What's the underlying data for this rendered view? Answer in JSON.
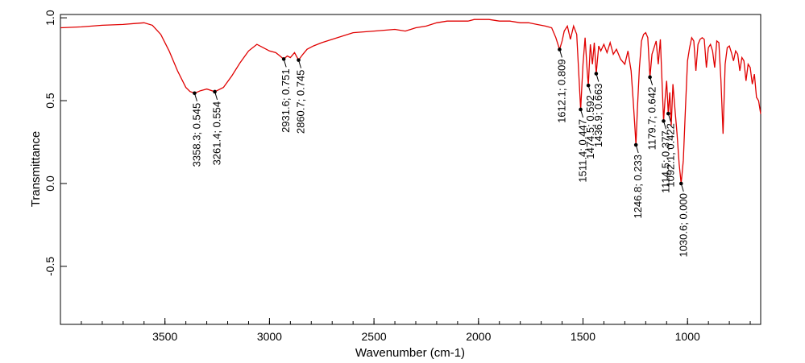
{
  "chart_data": {
    "type": "line",
    "xlabel": "Wavenumber (cm-1)",
    "ylabel": "Transmittance",
    "xlim": [
      4000,
      650
    ],
    "ylim": [
      -0.85,
      1.02
    ],
    "x_reversed": true,
    "grid": false,
    "x_ticks": [
      3500,
      3000,
      2500,
      2000,
      1500,
      1000
    ],
    "y_ticks": [
      1.0,
      0.5,
      0.0,
      -0.5
    ],
    "y_tick_labels": [
      "1.0",
      "0.5",
      "0.0",
      "-0.5"
    ],
    "series_color": "#e00000",
    "series": [
      {
        "x": [
          4000,
          3900,
          3800,
          3700,
          3650,
          3600,
          3560,
          3520,
          3480,
          3440,
          3400,
          3380,
          3358.3,
          3330,
          3300,
          3261.4,
          3220,
          3180,
          3140,
          3100,
          3060,
          3030,
          3000,
          2970,
          2950,
          2931.6,
          2915,
          2900,
          2880,
          2860.7,
          2840,
          2820,
          2790,
          2750,
          2700,
          2600,
          2500,
          2400,
          2350,
          2300,
          2250,
          2200,
          2150,
          2100,
          2050,
          2020,
          2000,
          1950,
          1900,
          1850,
          1800,
          1760,
          1720,
          1680,
          1650,
          1640,
          1630,
          1620,
          1612.1,
          1600,
          1590,
          1575,
          1560,
          1545,
          1530,
          1520,
          1511.4,
          1500,
          1490,
          1480,
          1474.5,
          1465,
          1455,
          1446,
          1436.9,
          1425,
          1415,
          1400,
          1385,
          1370,
          1355,
          1340,
          1320,
          1300,
          1285,
          1270,
          1260,
          1250,
          1246.8,
          1240,
          1230,
          1220,
          1210,
          1200,
          1190,
          1179.7,
          1170,
          1160,
          1150,
          1140,
          1130,
          1120,
          1114.5,
          1108,
          1100,
          1092.1,
          1085,
          1078,
          1070,
          1060,
          1050,
          1040,
          1030.6,
          1020,
          1010,
          1000,
          990,
          980,
          970,
          960,
          950,
          940,
          930,
          920,
          910,
          900,
          890,
          880,
          870,
          860,
          850,
          840,
          830,
          820,
          810,
          800,
          790,
          780,
          770,
          760,
          750,
          740,
          730,
          720,
          710,
          700,
          690,
          680,
          670,
          660,
          650
        ],
        "y": [
          0.94,
          0.945,
          0.955,
          0.96,
          0.965,
          0.97,
          0.955,
          0.9,
          0.8,
          0.68,
          0.58,
          0.555,
          0.545,
          0.56,
          0.57,
          0.554,
          0.58,
          0.65,
          0.73,
          0.8,
          0.84,
          0.82,
          0.8,
          0.79,
          0.77,
          0.751,
          0.77,
          0.76,
          0.79,
          0.745,
          0.78,
          0.81,
          0.83,
          0.85,
          0.87,
          0.91,
          0.92,
          0.93,
          0.92,
          0.94,
          0.95,
          0.97,
          0.98,
          0.98,
          0.98,
          0.99,
          0.99,
          0.99,
          0.98,
          0.98,
          0.97,
          0.97,
          0.96,
          0.95,
          0.94,
          0.91,
          0.88,
          0.84,
          0.809,
          0.86,
          0.92,
          0.95,
          0.87,
          0.95,
          0.9,
          0.66,
          0.447,
          0.72,
          0.88,
          0.68,
          0.592,
          0.84,
          0.72,
          0.85,
          0.663,
          0.83,
          0.8,
          0.84,
          0.79,
          0.85,
          0.78,
          0.81,
          0.75,
          0.72,
          0.8,
          0.68,
          0.5,
          0.3,
          0.233,
          0.45,
          0.7,
          0.86,
          0.9,
          0.91,
          0.88,
          0.642,
          0.78,
          0.82,
          0.86,
          0.72,
          0.87,
          0.55,
          0.377,
          0.5,
          0.62,
          0.422,
          0.55,
          0.35,
          0.6,
          0.45,
          0.3,
          0.12,
          0.0,
          0.14,
          0.45,
          0.74,
          0.82,
          0.88,
          0.86,
          0.68,
          0.84,
          0.87,
          0.88,
          0.87,
          0.7,
          0.82,
          0.84,
          0.8,
          0.7,
          0.86,
          0.85,
          0.62,
          0.3,
          0.72,
          0.82,
          0.83,
          0.79,
          0.74,
          0.8,
          0.78,
          0.68,
          0.76,
          0.74,
          0.62,
          0.72,
          0.7,
          0.6,
          0.66,
          0.52,
          0.5,
          0.42
        ]
      }
    ],
    "annotations": [
      {
        "x": 3358.3,
        "y": 0.545,
        "text": "3358.3; 0.545"
      },
      {
        "x": 3261.4,
        "y": 0.554,
        "text": "3261.4; 0.554"
      },
      {
        "x": 2931.6,
        "y": 0.751,
        "text": "2931.6; 0.751"
      },
      {
        "x": 2860.7,
        "y": 0.745,
        "text": "2860.7; 0.745"
      },
      {
        "x": 1612.1,
        "y": 0.809,
        "text": "1612.1; 0.809"
      },
      {
        "x": 1511.4,
        "y": 0.447,
        "text": "1511.4; 0.447"
      },
      {
        "x": 1474.5,
        "y": 0.592,
        "text": "1474.5; 0.592"
      },
      {
        "x": 1436.9,
        "y": 0.663,
        "text": "1436.9; 0.663"
      },
      {
        "x": 1246.8,
        "y": 0.233,
        "text": "1246.8; 0.233"
      },
      {
        "x": 1179.7,
        "y": 0.642,
        "text": "1179.7; 0.642"
      },
      {
        "x": 1114.5,
        "y": 0.377,
        "text": "1114.5; 0.377"
      },
      {
        "x": 1092.1,
        "y": 0.422,
        "text": "1092.1; 0.422"
      },
      {
        "x": 1030.6,
        "y": 0.0,
        "text": "1030.6; 0.000"
      }
    ]
  }
}
